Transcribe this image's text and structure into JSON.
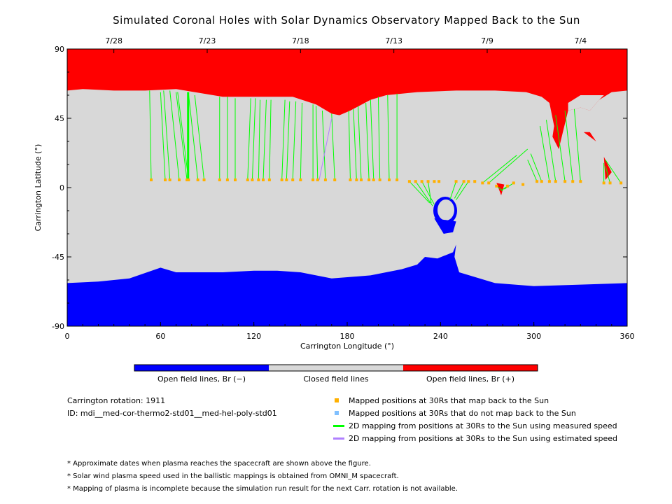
{
  "title": "Simulated Coronal Holes with Solar Dynamics Observatory Mapped Back to the Sun",
  "colors": {
    "positive": "#ff0000",
    "negative": "#0000ff",
    "closed": "#d8d8d8",
    "measured": "#00ff00",
    "estimated": "#b080ff",
    "mapped": "#ffb000",
    "unmapped": "#80c0ff"
  },
  "chart_data": {
    "type": "scatter",
    "title": "Simulated Coronal Holes with Solar Dynamics Observatory Mapped Back to the Sun",
    "xlabel": "Carrington Longitude (°)",
    "ylabel": "Carrington Latitude (°)",
    "xlim": [
      0,
      360
    ],
    "ylim": [
      -90,
      90
    ],
    "xticks": [
      "0",
      "60",
      "120",
      "180",
      "240",
      "300",
      "360"
    ],
    "yticks": [
      "90",
      "45",
      "0",
      "-45",
      "-90"
    ],
    "top_dates": [
      {
        "label": "7/28",
        "lon": 30
      },
      {
        "label": "7/23",
        "lon": 90
      },
      {
        "label": "7/18",
        "lon": 150
      },
      {
        "label": "7/13",
        "lon": 210
      },
      {
        "label": "7/9",
        "lon": 270
      },
      {
        "label": "7/4",
        "lon": 330
      }
    ],
    "regions": {
      "positive_hole_boundary": [
        [
          0,
          63
        ],
        [
          10,
          64
        ],
        [
          30,
          63
        ],
        [
          50,
          63
        ],
        [
          70,
          64
        ],
        [
          100,
          59
        ],
        [
          120,
          59
        ],
        [
          145,
          59
        ],
        [
          160,
          54
        ],
        [
          170,
          48
        ],
        [
          175,
          47
        ],
        [
          182,
          50
        ],
        [
          195,
          57
        ],
        [
          205,
          60
        ],
        [
          225,
          62
        ],
        [
          250,
          63
        ],
        [
          275,
          63
        ],
        [
          295,
          62
        ],
        [
          305,
          59
        ],
        [
          310,
          55
        ],
        [
          313,
          40
        ],
        [
          312,
          33
        ],
        [
          316,
          25
        ],
        [
          322,
          50
        ],
        [
          330,
          52
        ],
        [
          336,
          50
        ],
        [
          342,
          57
        ],
        [
          350,
          62
        ],
        [
          360,
          63
        ]
      ],
      "negative_hole_boundary": [
        [
          0,
          -62
        ],
        [
          20,
          -61
        ],
        [
          40,
          -59
        ],
        [
          60,
          -52
        ],
        [
          70,
          -55
        ],
        [
          100,
          -55
        ],
        [
          120,
          -54
        ],
        [
          135,
          -54
        ],
        [
          150,
          -55
        ],
        [
          170,
          -59
        ],
        [
          195,
          -57
        ],
        [
          215,
          -53
        ],
        [
          225,
          -50
        ],
        [
          230,
          -45
        ],
        [
          238,
          -46
        ],
        [
          248,
          -42
        ],
        [
          250,
          -37
        ],
        [
          249,
          -45
        ],
        [
          252,
          -55
        ],
        [
          275,
          -62
        ],
        [
          300,
          -64
        ],
        [
          330,
          -63
        ],
        [
          360,
          -62
        ]
      ],
      "negative_island_center": [
        243,
        -15
      ],
      "positive_patches": [
        [
          [
            276,
            3
          ],
          [
            281,
            2
          ],
          [
            279,
            -5
          ]
        ],
        [
          [
            332,
            36
          ],
          [
            336,
            36
          ],
          [
            340,
            30
          ]
        ],
        [
          [
            345,
            20
          ],
          [
            346,
            5
          ],
          [
            350,
            10
          ]
        ]
      ]
    },
    "measured_mappings": [
      [
        54,
        5,
        53,
        63
      ],
      [
        63,
        5,
        60,
        62
      ],
      [
        66,
        5,
        62,
        63
      ],
      [
        72,
        5,
        66,
        63
      ],
      [
        77,
        5,
        70,
        62
      ],
      [
        78,
        5,
        71,
        62
      ],
      [
        84,
        5,
        78,
        61
      ],
      [
        88,
        5,
        82,
        60
      ],
      [
        98,
        5,
        98,
        59
      ],
      [
        103,
        5,
        103,
        59
      ],
      [
        108,
        5,
        108,
        58
      ],
      [
        116,
        5,
        118,
        58
      ],
      [
        119,
        5,
        121,
        58
      ],
      [
        123,
        5,
        124,
        57
      ],
      [
        126,
        5,
        128,
        57
      ],
      [
        130,
        5,
        131,
        57
      ],
      [
        138,
        5,
        140,
        57
      ],
      [
        141,
        5,
        143,
        56
      ],
      [
        145,
        5,
        147,
        56
      ],
      [
        150,
        5,
        151,
        55
      ],
      [
        158,
        5,
        158,
        54
      ],
      [
        161,
        5,
        160,
        53
      ],
      [
        166,
        5,
        164,
        50
      ],
      [
        172,
        5,
        170,
        48
      ],
      [
        182,
        5,
        181,
        50
      ],
      [
        186,
        5,
        184,
        51
      ],
      [
        189,
        5,
        187,
        53
      ],
      [
        194,
        5,
        192,
        55
      ],
      [
        197,
        5,
        195,
        57
      ],
      [
        201,
        5,
        200,
        59
      ],
      [
        207,
        5,
        206,
        60
      ],
      [
        212,
        5,
        212,
        61
      ],
      [
        220,
        4,
        233,
        -10
      ],
      [
        224,
        4,
        235,
        -12
      ],
      [
        228,
        4,
        236,
        -11
      ],
      [
        232,
        4,
        234,
        -10
      ],
      [
        250,
        4,
        246,
        -8
      ],
      [
        255,
        4,
        249,
        -7
      ],
      [
        258,
        4,
        250,
        -8
      ],
      [
        267,
        3,
        289,
        21
      ],
      [
        271,
        3,
        296,
        25
      ],
      [
        276,
        1,
        280,
        -2
      ],
      [
        283,
        1,
        279,
        -2
      ],
      [
        287,
        3,
        281,
        -1
      ],
      [
        302,
        4,
        296,
        18
      ],
      [
        305,
        4,
        298,
        22
      ],
      [
        310,
        4,
        304,
        40
      ],
      [
        314,
        4,
        308,
        44
      ],
      [
        320,
        4,
        314,
        47
      ],
      [
        325,
        4,
        320,
        50
      ],
      [
        330,
        4,
        326,
        51
      ],
      [
        345,
        3,
        345,
        16
      ],
      [
        349,
        3,
        346,
        14
      ],
      [
        356,
        3,
        346,
        18
      ]
    ],
    "estimated_mappings": [
      [
        162,
        5,
        170,
        45
      ]
    ],
    "mapped_points": [
      [
        54,
        5
      ],
      [
        63,
        5
      ],
      [
        66,
        5
      ],
      [
        72,
        5
      ],
      [
        77,
        5
      ],
      [
        78,
        5
      ],
      [
        84,
        5
      ],
      [
        88,
        5
      ],
      [
        98,
        5
      ],
      [
        103,
        5
      ],
      [
        108,
        5
      ],
      [
        116,
        5
      ],
      [
        119,
        5
      ],
      [
        123,
        5
      ],
      [
        126,
        5
      ],
      [
        130,
        5
      ],
      [
        138,
        5
      ],
      [
        141,
        5
      ],
      [
        145,
        5
      ],
      [
        150,
        5
      ],
      [
        158,
        5
      ],
      [
        161,
        5
      ],
      [
        166,
        5
      ],
      [
        172,
        5
      ],
      [
        182,
        5
      ],
      [
        186,
        5
      ],
      [
        189,
        5
      ],
      [
        194,
        5
      ],
      [
        197,
        5
      ],
      [
        201,
        5
      ],
      [
        207,
        5
      ],
      [
        212,
        5
      ],
      [
        220,
        4
      ],
      [
        224,
        4
      ],
      [
        228,
        4
      ],
      [
        232,
        4
      ],
      [
        236,
        4
      ],
      [
        239,
        4
      ],
      [
        250,
        4
      ],
      [
        255,
        4
      ],
      [
        258,
        4
      ],
      [
        262,
        4
      ],
      [
        267,
        3
      ],
      [
        271,
        3
      ],
      [
        276,
        1
      ],
      [
        283,
        1
      ],
      [
        287,
        3
      ],
      [
        293,
        2
      ],
      [
        302,
        4
      ],
      [
        305,
        4
      ],
      [
        310,
        4
      ],
      [
        314,
        4
      ],
      [
        320,
        4
      ],
      [
        325,
        4
      ],
      [
        330,
        4
      ],
      [
        345,
        3
      ],
      [
        349,
        3
      ],
      [
        356,
        3
      ]
    ],
    "colorbar": [
      "Open field lines, Br (−)",
      "Closed field lines",
      "Open field lines, Br (+)"
    ],
    "legend": [
      "Mapped positions at 30Rs that map back to the Sun",
      "Mapped positions at 30Rs that do not map back to the Sun",
      "2D mapping from positions at 30Rs to the Sun using measured speed",
      "2D mapping from positions at 30Rs to the Sun using estimated speed"
    ]
  },
  "info": {
    "rotation": "Carrington rotation: 1911",
    "id": "ID: mdi__med-cor-thermo2-std01__med-hel-poly-std01"
  },
  "footnotes": [
    "* Approximate dates when plasma reaches the spacecraft are shown above the figure.",
    "* Solar wind plasma speed used in the ballistic mappings is obtained from OMNI_M spacecraft.",
    "* Mapping of plasma is incomplete because the simulation run result for the next Carr. rotation is not available."
  ]
}
